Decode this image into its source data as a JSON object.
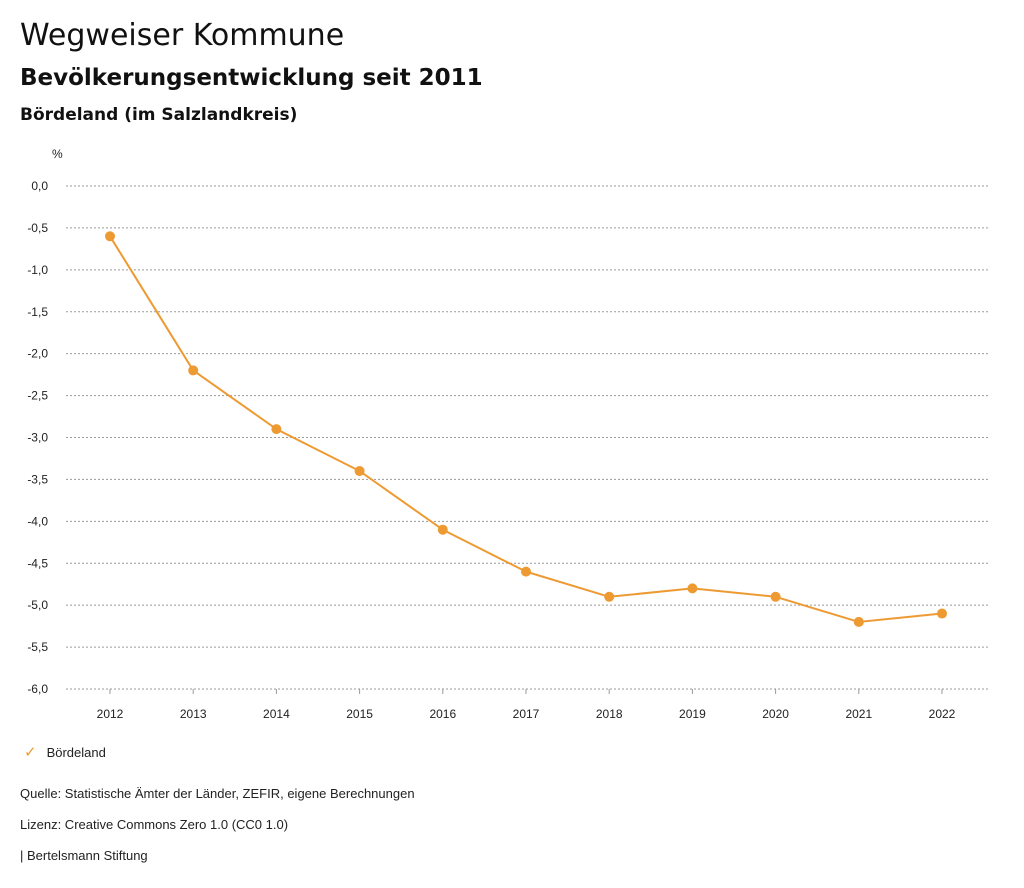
{
  "header": {
    "title": "Wegweiser Kommune",
    "subtitle": "Bevölkerungsentwicklung seit 2011",
    "region": "Bördeland (im Salzlandkreis)"
  },
  "colors": {
    "series": "#ee9a33",
    "grid": "#9a9a9a",
    "text": "#222222"
  },
  "legend": {
    "icon": "checkmark-icon",
    "label": "Bördeland"
  },
  "footer": {
    "source": "Quelle: Statistische Ämter der Länder, ZEFIR, eigene Berechnungen",
    "license": "Lizenz: Creative Commons Zero 1.0 (CC0 1.0)",
    "publisher": "| Bertelsmann Stiftung"
  },
  "chart_data": {
    "type": "line",
    "title": "Bevölkerungsentwicklung seit 2011",
    "xlabel": "",
    "ylabel": "%",
    "categories": [
      "2012",
      "2013",
      "2014",
      "2015",
      "2016",
      "2017",
      "2018",
      "2019",
      "2020",
      "2021",
      "2022"
    ],
    "ylim": [
      -6.0,
      0.0
    ],
    "yticks": [
      0.0,
      -0.5,
      -1.0,
      -1.5,
      -2.0,
      -2.5,
      -3.0,
      -3.5,
      -4.0,
      -4.5,
      -5.0,
      -5.5,
      -6.0
    ],
    "ytick_labels": [
      "0,0",
      "-0,5",
      "-1,0",
      "-1,5",
      "-2,0",
      "-2,5",
      "-3,0",
      "-3,5",
      "-4,0",
      "-4,5",
      "-5,0",
      "-5,5",
      "-6,0"
    ],
    "grid": true,
    "legend_position": "bottom-left",
    "series": [
      {
        "name": "Bördeland",
        "values": [
          -0.6,
          -2.2,
          -2.9,
          -3.4,
          -4.1,
          -4.6,
          -4.9,
          -4.8,
          -4.9,
          -5.2,
          -5.1
        ]
      }
    ]
  }
}
